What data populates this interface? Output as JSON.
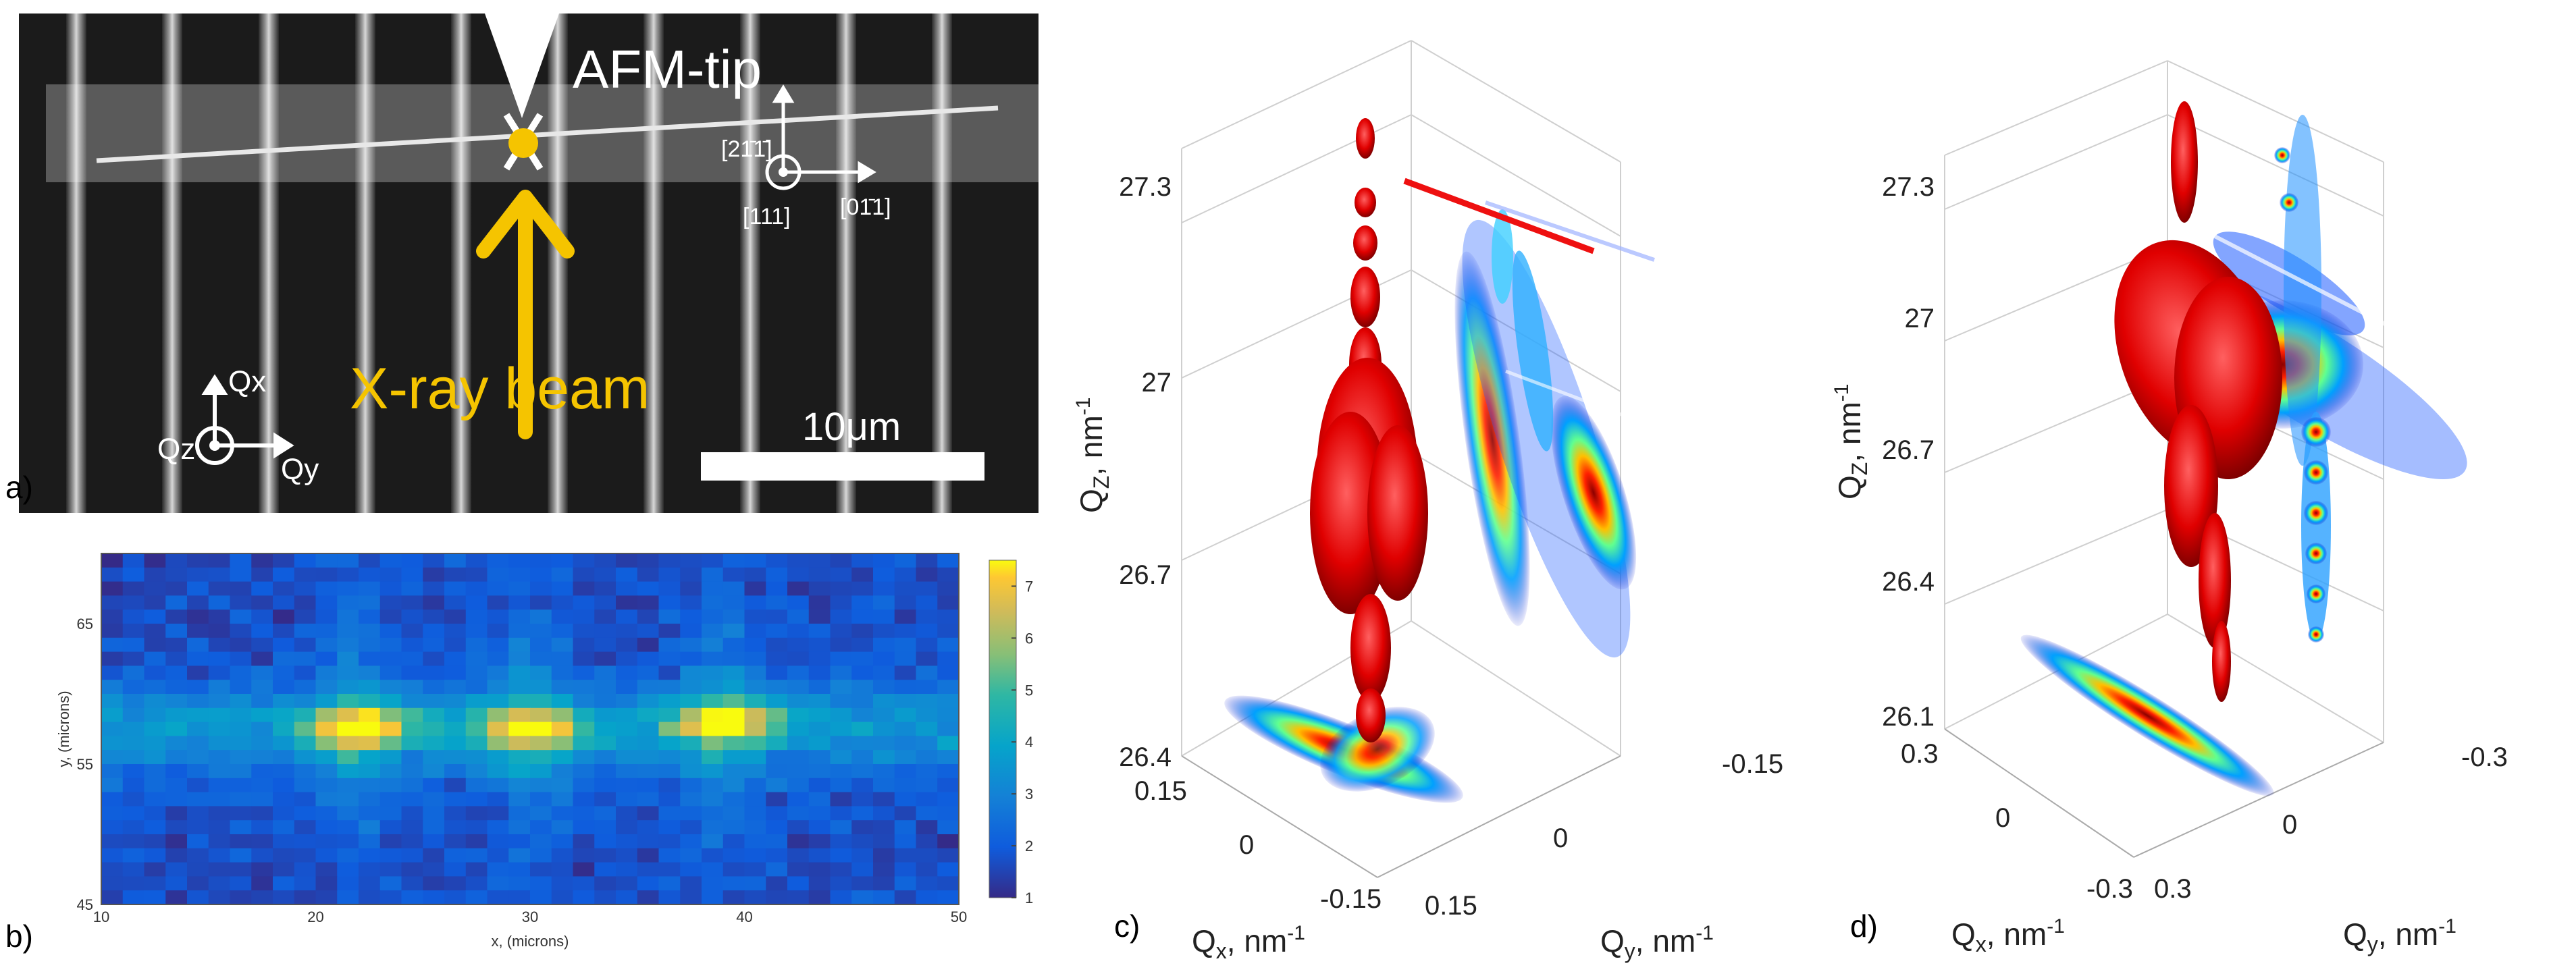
{
  "panel_a": {
    "label": "a)",
    "afm_label": "AFM-tip",
    "xray_label": "X-ray beam",
    "scale_label": "10μm",
    "dir_up": "[21̄1̄]",
    "dir_out": "[111]",
    "dir_right": "[01̄1]",
    "axis_qx": "Qx",
    "axis_qy": "Qy",
    "axis_qz": "Qz",
    "colors": {
      "beam": "#f5c400",
      "background": "#1b1b1b"
    }
  },
  "panel_b": {
    "label": "b)",
    "chart_data": {
      "type": "heatmap",
      "xlabel": "x, (microns)",
      "ylabel": "y, (microns)",
      "xticks": [
        "10",
        "20",
        "30",
        "40",
        "50"
      ],
      "yticks": [
        "65",
        "55",
        "45"
      ],
      "xlim": [
        10,
        50
      ],
      "ylim": [
        45,
        70
      ],
      "colorbar_ticks": [
        "7",
        "6",
        "5",
        "4",
        "3",
        "2",
        "1"
      ],
      "clim": [
        1,
        7.5
      ],
      "hotspots": [
        {
          "x": 22,
          "y": 57.5,
          "value": 7.3
        },
        {
          "x": 30,
          "y": 57.5,
          "value": 7.0
        },
        {
          "x": 39,
          "y": 58,
          "value": 6.8
        }
      ]
    }
  },
  "panel_c": {
    "label": "c)",
    "zlabel": "Q",
    "zsub": "Z",
    "zunit": ", nm",
    "zsup": "-1",
    "zticks": [
      "27.3",
      "27",
      "26.7",
      "26.4"
    ],
    "xlabel": "Q",
    "xsub": "x",
    "xunit": ", nm",
    "xsup": "-1",
    "xticks": [
      "0.15",
      "0",
      "-0.15"
    ],
    "ylabel": "Q",
    "ysub": "y",
    "yunit": ", nm",
    "ysup": "-1",
    "yticks": [
      "0.15",
      "0",
      "-0.15"
    ]
  },
  "panel_d": {
    "label": "d)",
    "zlabel": "Q",
    "zsub": "Z",
    "zunit": ",  nm",
    "zsup": "-1",
    "zticks": [
      "27.3",
      "27",
      "26.7",
      "26.4",
      "26.1"
    ],
    "xlabel": "Q",
    "xsub": "x",
    "xunit": ",  nm",
    "xsup": "-1",
    "xticks": [
      "0.3",
      "0",
      "-0.3"
    ],
    "ylabel": "Q",
    "ysub": "y",
    "yunit": ",  nm",
    "ysup": "-1",
    "yticks": [
      "0.3",
      "0",
      "-0.3"
    ]
  }
}
